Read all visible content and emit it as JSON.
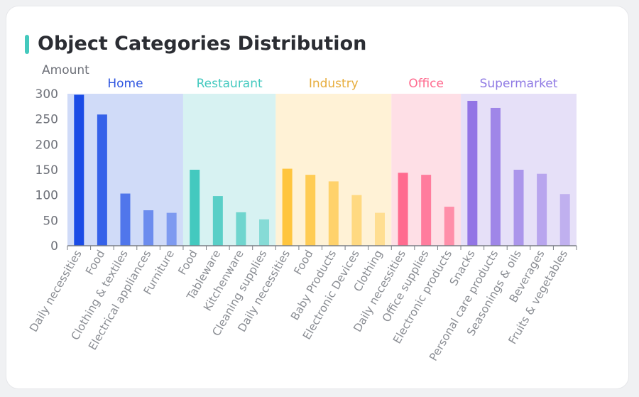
{
  "chart_data": {
    "type": "bar",
    "title": "Object Categories Distribution",
    "ylabel": "Amount",
    "ylim": [
      0,
      300
    ],
    "yticks": [
      0,
      50,
      100,
      150,
      200,
      250,
      300
    ],
    "grid": false,
    "groups": [
      {
        "name": "Home",
        "color": "#1a4be6",
        "bg": "#d0dbf8",
        "label_color": "#2e55e0",
        "categories": [
          "Daily necessities",
          "Food",
          "Clothing & textiles",
          "Electrical appliances",
          "Furniture"
        ],
        "values": [
          298,
          259,
          103,
          70,
          65
        ]
      },
      {
        "name": "Restaurant",
        "color": "#43c9bf",
        "bg": "#d7f2f2",
        "label_color": "#43c9bf",
        "categories": [
          "Food",
          "Tableware",
          "Kitchenware",
          "Cleaning supplies"
        ],
        "values": [
          150,
          98,
          66,
          52
        ]
      },
      {
        "name": "Industry",
        "color": "#ffc53d",
        "bg": "#fff2d6",
        "label_color": "#e7ad3c",
        "categories": [
          "Daily necessities",
          "Food",
          "Baby Products",
          "Electronic Devices",
          "Clothing"
        ],
        "values": [
          152,
          140,
          127,
          100,
          65
        ]
      },
      {
        "name": "Office",
        "color": "#ff6b8f",
        "bg": "#fedfe6",
        "label_color": "#ff6b8f",
        "categories": [
          "Daily necessities",
          "Office supplies",
          "Electronic products"
        ],
        "values": [
          144,
          140,
          77
        ]
      },
      {
        "name": "Supermarket",
        "color": "#9275e5",
        "bg": "#e6e0f8",
        "label_color": "#8f7ae4",
        "categories": [
          "Snacks",
          "Personal care products",
          "Seasonings & oils",
          "Beverages",
          "Fruits & vegetables"
        ],
        "values": [
          286,
          272,
          150,
          142,
          102
        ]
      }
    ]
  }
}
